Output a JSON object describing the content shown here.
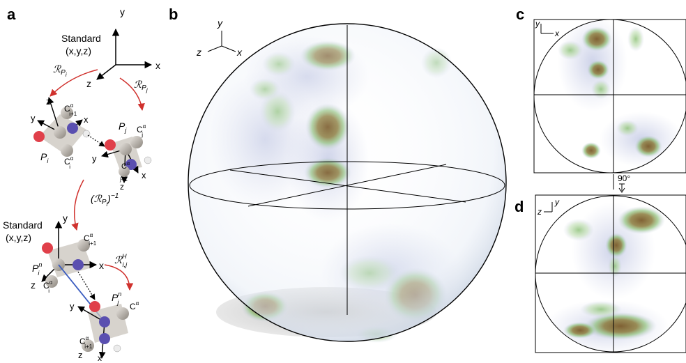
{
  "panels": {
    "a": {
      "label": "a"
    },
    "b": {
      "label": "b"
    },
    "c": {
      "label": "c"
    },
    "d": {
      "label": "d"
    }
  },
  "panel_a": {
    "standard_label_1": "Standard",
    "coords_label_1": "(x,y,z)",
    "standard_label_2": "Standard",
    "coords_label_2": "(x,y,z)",
    "axis_x": "x",
    "axis_y": "y",
    "axis_z": "z",
    "rot_Pi": "ℛ",
    "rot_Pi_sub": "P",
    "rot_Pi_subsub": "i",
    "rot_Pj": "ℛ",
    "rot_Pj_sub": "P",
    "rot_Pj_subsub": "j",
    "inverse_prefix": "(ℛ",
    "inverse_sub": "P",
    "inverse_subsub": "i",
    "inverse_suffix": ")",
    "inverse_sup": "−1",
    "rot_H": "ℛ",
    "rot_H_sub": "i,j",
    "rot_H_sup": "H",
    "Pi": "P",
    "Pi_sub": "i",
    "Pj": "P",
    "Pj_sub": "j",
    "Pin": "P",
    "Pin_sup": "n",
    "Pin_sub": "i",
    "Pjn": "P",
    "Pjn_sup": "n",
    "Pjn_sub": "j",
    "calpha": "C",
    "calpha_sup": "α",
    "sub_i": "i",
    "sub_i1": "i+1",
    "sub_j": "j",
    "sub_j1": "j+1"
  },
  "panel_b": {
    "axis_x": "x",
    "axis_y": "y",
    "axis_z": "z"
  },
  "panel_c": {
    "axis_x": "x",
    "axis_y": "y"
  },
  "panel_d": {
    "axis_y": "y",
    "axis_z": "z"
  },
  "rotation_annotation": "90°",
  "colors": {
    "arrow_red": "#d0312d",
    "density_low": "#c8cde6",
    "density_mid": "#8fc27a",
    "density_high": "#7a5a2a"
  }
}
